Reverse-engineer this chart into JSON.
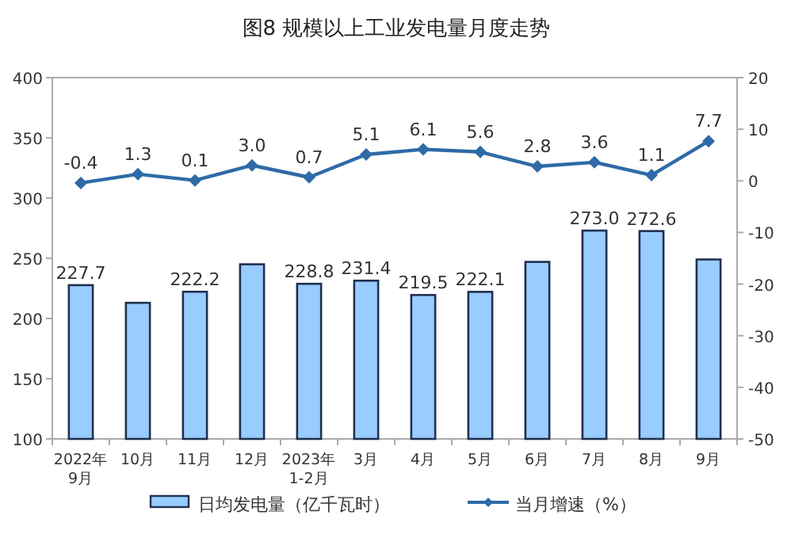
{
  "chart_data": {
    "type": "bar",
    "title": "图8  规模以上工业发电量月度走势",
    "categories": [
      "2022年\n9月",
      "10月",
      "11月",
      "12月",
      "2023年\n1-2月",
      "3月",
      "4月",
      "5月",
      "6月",
      "7月",
      "8月",
      "9月"
    ],
    "series": [
      {
        "name": "日均发电量（亿千瓦时）",
        "color": "#99ccff",
        "values": [
          227.7,
          213,
          222.2,
          245,
          228.8,
          231.4,
          219.5,
          222.1,
          247,
          273.0,
          272.6,
          249
        ],
        "value_labels": [
          "227.7",
          null,
          "222.2",
          null,
          "228.8",
          "231.4",
          "219.5",
          "222.1",
          null,
          "273.0",
          "272.6",
          null
        ]
      },
      {
        "name": "当月增速（%）",
        "type": "line",
        "axis": "y2",
        "color": "#2e6aa6",
        "marker": "diamond",
        "values": [
          -0.4,
          1.3,
          0.1,
          3.0,
          0.7,
          5.1,
          6.1,
          5.6,
          2.8,
          3.6,
          1.1,
          7.7
        ],
        "value_labels": [
          "-0.4",
          "1.3",
          "0.1",
          "3.0",
          "0.7",
          "5.1",
          "6.1",
          "5.6",
          "2.8",
          "3.6",
          "1.1",
          "7.7"
        ]
      }
    ],
    "ylim": [
      100,
      400
    ],
    "yticks": [
      100,
      150,
      200,
      250,
      300,
      350,
      400
    ],
    "y2lim": [
      -50,
      20
    ],
    "y2ticks": [
      -50,
      -40,
      -30,
      -20,
      -10,
      0,
      10,
      20
    ],
    "legend": "bottom"
  }
}
